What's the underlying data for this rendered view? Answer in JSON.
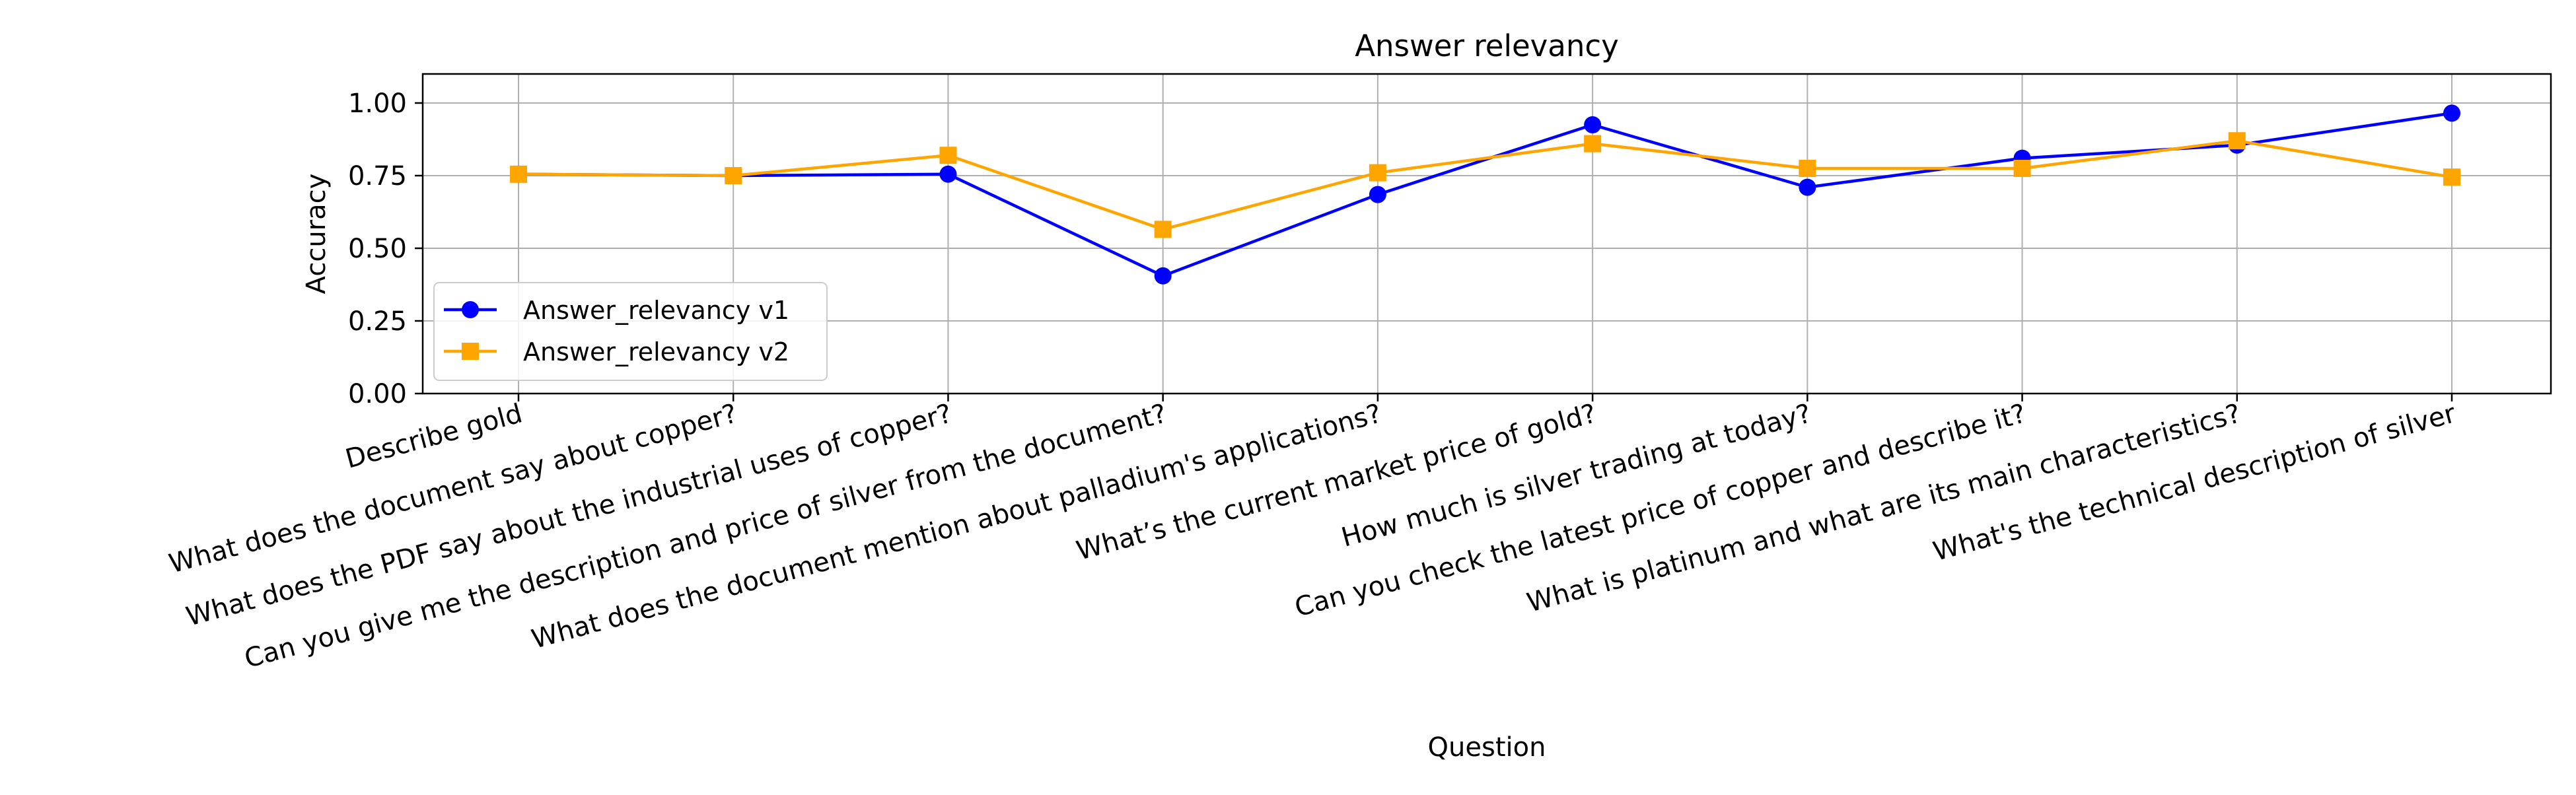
{
  "chart_data": {
    "type": "line",
    "title": "Answer relevancy",
    "xlabel": "Question",
    "ylabel": "Accuracy",
    "ylim": [
      0,
      1.1
    ],
    "yticks": [
      "0.00",
      "0.25",
      "0.50",
      "0.75",
      "1.00"
    ],
    "grid": true,
    "legend_position": "lower-left",
    "categories": [
      "Describe gold",
      "What does the document say about copper?",
      "What does the PDF say about the industrial uses of copper?",
      "Can you give me the description and price of silver from the document?",
      "What does the document mention about palladium's applications?",
      "What’s the current market price of gold?",
      "How much is silver trading at today?",
      "Can you check the latest price of copper and describe it?",
      "What is platinum and what are its main characteristics?",
      "What's the technical description of silver"
    ],
    "series": [
      {
        "name": "Answer_relevancy v1",
        "color": "#0000ff",
        "marker": "circle",
        "values": [
          0.755,
          0.75,
          0.755,
          0.405,
          0.685,
          0.925,
          0.71,
          0.81,
          0.855,
          0.965
        ]
      },
      {
        "name": "Answer_relevancy v2",
        "color": "#ffa500",
        "marker": "square",
        "values": [
          0.755,
          0.75,
          0.82,
          0.565,
          0.76,
          0.86,
          0.775,
          0.775,
          0.87,
          0.745
        ]
      }
    ]
  }
}
